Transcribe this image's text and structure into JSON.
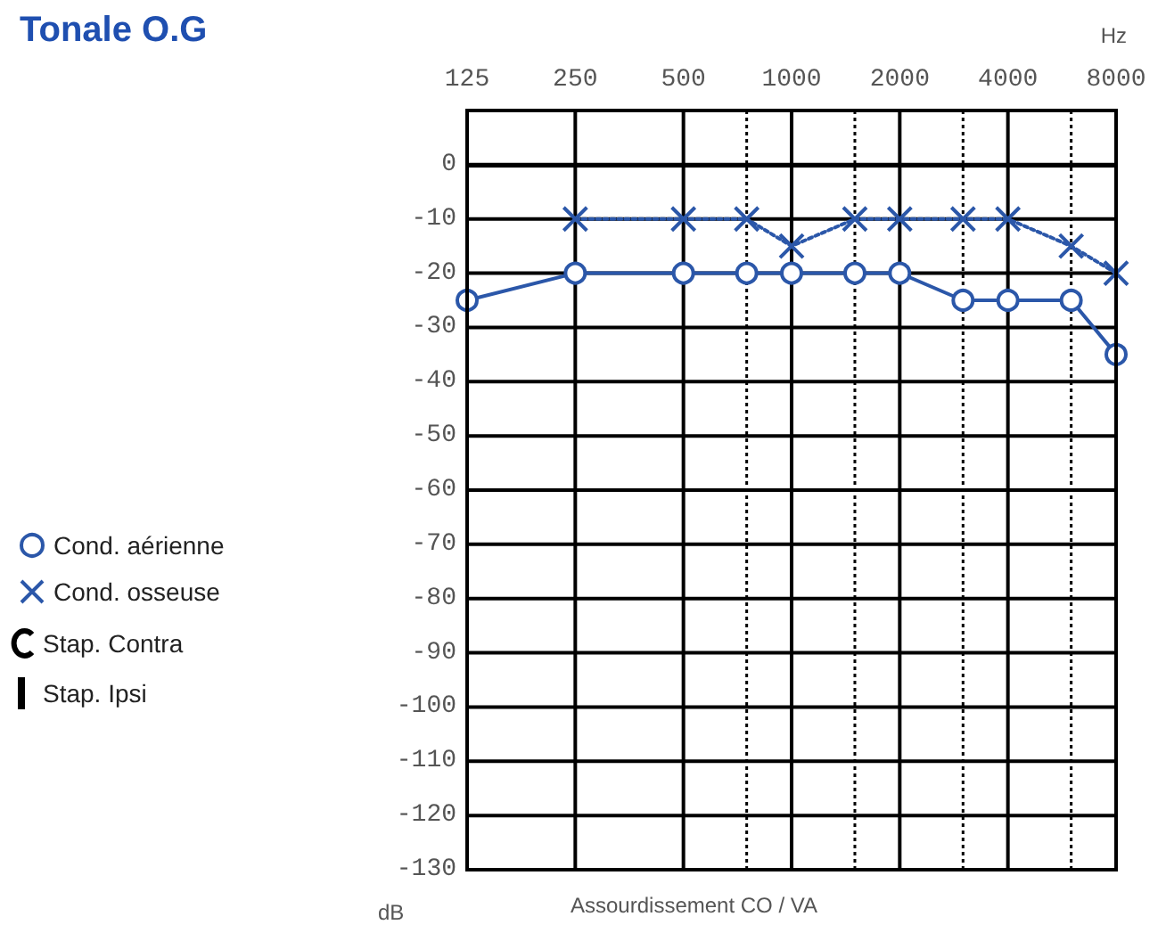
{
  "chart_data": {
    "type": "line",
    "title": "Tonale O.G",
    "xlabel": "Hz",
    "ylabel": "dB",
    "annotations": [
      "Assourdissement CO / VA",
      "Stap. Contra",
      "Stap. Ipsi"
    ],
    "log": "x",
    "xlim": [
      125,
      8000
    ],
    "xticks": [
      125,
      250,
      500,
      {
        "value": 750,
        "label": null
      },
      1000,
      {
        "value": 1500,
        "label": null
      },
      2000,
      {
        "value": 3000,
        "label": null
      },
      4000,
      {
        "value": 6000,
        "label": null
      },
      8000
    ],
    "ylim": [
      -130,
      10
    ],
    "yticks": [
      -130,
      -120,
      -110,
      -100,
      -90,
      -80,
      -70,
      -60,
      -50,
      -40,
      -30,
      -20,
      -10,
      0
    ],
    "grid": true,
    "legend": "left",
    "series": [
      {
        "name": "Cond. aérienne",
        "color": "#2b57a9",
        "marker": "circle",
        "line_style": "solid",
        "x": [
          125,
          250,
          500,
          750,
          1000,
          1500,
          2000,
          3000,
          4000,
          6000,
          8000
        ],
        "values": [
          -25,
          -20,
          -20,
          -20,
          -20,
          -20,
          -20,
          -25,
          -25,
          -25,
          -35
        ]
      },
      {
        "name": "Cond. osseuse",
        "color": "#2b57a9",
        "marker": "cross",
        "line_style": "dotted",
        "x": [
          250,
          500,
          750,
          1000,
          1500,
          2000,
          3000,
          4000,
          6000,
          8000
        ],
        "values": [
          -10,
          -10,
          -10,
          -15,
          -10,
          -10,
          -10,
          -10,
          -15,
          -20
        ]
      }
    ]
  }
}
